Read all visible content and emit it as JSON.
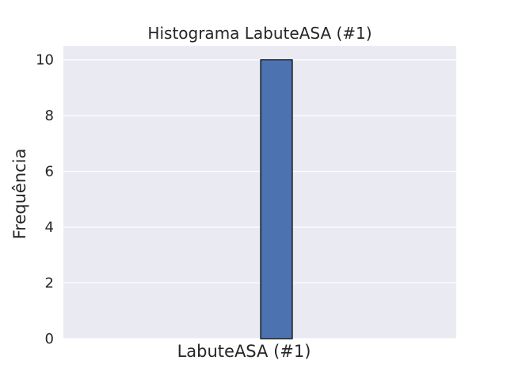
{
  "chart_data": {
    "type": "bar",
    "title": "Histograma LabuteASA (#1)",
    "xlabel": "LabuteASA (#1)",
    "ylabel": "Frequência",
    "ylim": [
      0,
      10.5
    ],
    "yticks": [
      0,
      2,
      4,
      6,
      8,
      10
    ],
    "yticklabels": [
      "0",
      "2",
      "4",
      "6",
      "8",
      "10"
    ],
    "grid": true,
    "legend": "none",
    "series": [
      {
        "values": [
          10
        ]
      }
    ],
    "colors": {
      "plot_background": "#eaeaf2",
      "bar_fill": "#4c72b0",
      "bar_edge": "#000000",
      "grid": "#ffffff"
    }
  }
}
